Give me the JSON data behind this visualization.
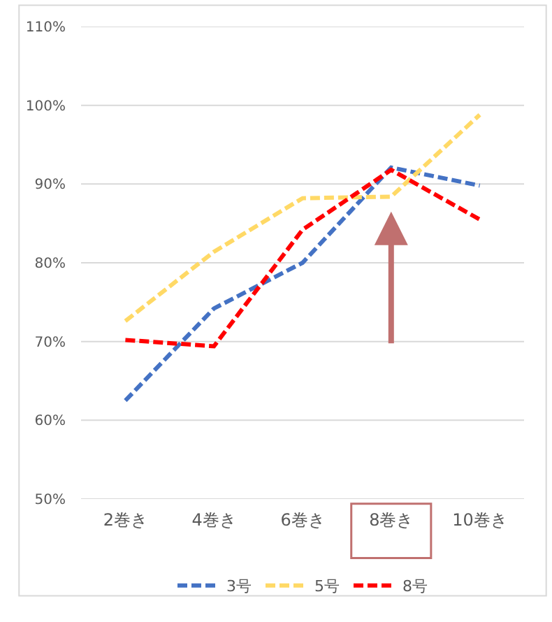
{
  "chart_data": {
    "type": "line",
    "categories": [
      "2巻き",
      "4巻き",
      "6巻き",
      "8巻き",
      "10巻き"
    ],
    "series": [
      {
        "name": "3号",
        "color": "#4472c4",
        "values": [
          62.5,
          74.2,
          80.0,
          92.1,
          89.8
        ]
      },
      {
        "name": "5号",
        "color": "#ffd966",
        "values": [
          72.6,
          81.4,
          88.2,
          88.4,
          98.8
        ]
      },
      {
        "name": "8号",
        "color": "#ff0000",
        "values": [
          70.2,
          69.4,
          84.2,
          91.8,
          85.5
        ]
      }
    ],
    "ylim": [
      50,
      110
    ],
    "yticks": [
      {
        "value": 50,
        "label": "50%"
      },
      {
        "value": 60,
        "label": "60%"
      },
      {
        "value": 70,
        "label": "70%"
      },
      {
        "value": 80,
        "label": "80%"
      },
      {
        "value": 90,
        "label": "90%"
      },
      {
        "value": 100,
        "label": "100%"
      },
      {
        "value": 110,
        "label": "110%"
      }
    ],
    "grid": "y",
    "legend": "bottom",
    "line_style": "dashed",
    "marker": "none"
  }
}
